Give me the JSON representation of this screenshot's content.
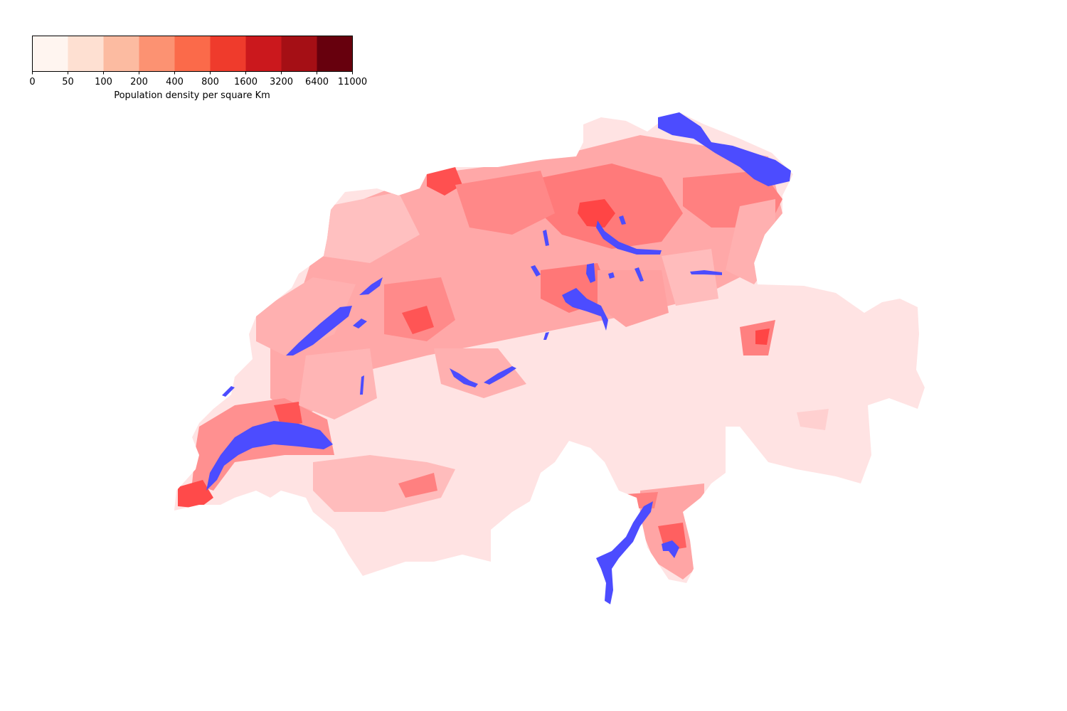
{
  "legend": {
    "title": "Population density per square Km",
    "bins": [
      "0",
      "50",
      "100",
      "200",
      "400",
      "800",
      "1600",
      "3200",
      "6400",
      "11000"
    ],
    "colors": [
      "#fff5f0",
      "#fee0d2",
      "#fcbba1",
      "#fc9272",
      "#fb6a4a",
      "#ef3b2c",
      "#cb181d",
      "#a50f15",
      "#67000d"
    ]
  },
  "map": {
    "subject": "Switzerland municipalities population density",
    "lake_color": "#4c4cff",
    "region_colors": {
      "very_low": "#ffe3e3",
      "low": "#ffc8c8",
      "mid": "#ffa0a0",
      "high": "#ff7070",
      "very_high": "#ff3333"
    }
  }
}
